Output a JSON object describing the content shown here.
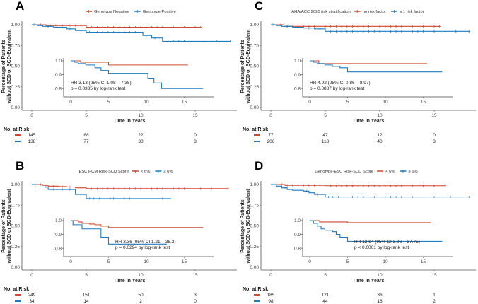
{
  "chart_data": [
    {
      "type": "line",
      "panel": "A",
      "legend_title": "",
      "xlabel": "Time in Years",
      "ylabel": [
        "Percentage of Patients",
        "without SCD or SCD-Equivalent"
      ],
      "xlim": [
        0,
        18.5
      ],
      "ylim": [
        0,
        1
      ],
      "xticks": [
        "0",
        "5",
        "10",
        "15"
      ],
      "yticks": [
        "0.00",
        "0.25",
        "0.50",
        "0.75",
        "1.00"
      ],
      "inset": {
        "xticks": [
          "0",
          "5",
          "10",
          "15"
        ],
        "yticks": [
          "0.8",
          "0.9",
          "1.0"
        ],
        "ylim": [
          0.77,
          1.0
        ]
      },
      "hr_text": "HR 3.13 (95% CI 1.08 – 7.38)",
      "p_text": "p = 0.0335 by log-rank test",
      "hr_position": "left",
      "risk_header": "No. at Risk",
      "series": [
        {
          "name": "Genotype Negative",
          "color": "#d0492f",
          "steps": [
            [
              0,
              1.0
            ],
            [
              1.3,
              0.99
            ],
            [
              5,
              0.97
            ]
          ],
          "end": 15.5,
          "censor": [
            0.3,
            0.8,
            1.2,
            1.7,
            2.2,
            2.8,
            3.5,
            4,
            4.5,
            5.5,
            6,
            6.5,
            7,
            7.5,
            8,
            8.5,
            9,
            9.5,
            10,
            10.5,
            11,
            11.5,
            12,
            13,
            14,
            15,
            15.5
          ],
          "at_risk": [
            "145",
            "88",
            "22",
            "0"
          ]
        },
        {
          "name": "Genotype Positive",
          "color": "#1f7bc0",
          "steps": [
            [
              0,
              1.0
            ],
            [
              0.5,
              0.99
            ],
            [
              1,
              0.98
            ],
            [
              2,
              0.97
            ],
            [
              3.2,
              0.95
            ],
            [
              4,
              0.93
            ],
            [
              5,
              0.91
            ],
            [
              10.2,
              0.87
            ],
            [
              11,
              0.84
            ],
            [
              12,
              0.8
            ]
          ],
          "end": 18.2,
          "censor": [
            0.2,
            1.5,
            2.5,
            3.5,
            4.5,
            5.3,
            6,
            6.5,
            7,
            7.5,
            8,
            8.5,
            9,
            9.5,
            10.5,
            11.3,
            12.5,
            13,
            13.5,
            14,
            14.5,
            16,
            17,
            18.2
          ],
          "at_risk": [
            "138",
            "77",
            "30",
            "3"
          ]
        }
      ]
    },
    {
      "type": "line",
      "panel": "C",
      "legend_title": "AHA/ACC 2020 risk stratification",
      "xlabel": "Time in Years",
      "ylabel": [
        "Percentage of Patients",
        "without SCD or SCD-Equivalent"
      ],
      "xlim": [
        0,
        18.5
      ],
      "ylim": [
        0,
        1
      ],
      "xticks": [
        "0",
        "5",
        "10",
        "15"
      ],
      "yticks": [
        "0.00",
        "0.25",
        "0.50",
        "0.75",
        "1.00"
      ],
      "inset": {
        "xticks": [
          "0",
          "5",
          "10",
          "15"
        ],
        "yticks": [
          "0.8",
          "0.9",
          "1.0"
        ],
        "ylim": [
          0.77,
          1.0
        ]
      },
      "hr_text": "HR 4.92 (95% CI 0.86 – 8.97)",
      "p_text": "p = 0.0887 by log-rank test",
      "hr_position": "left",
      "risk_header": "No. at Risk",
      "series": [
        {
          "name": "no risk factor",
          "color": "#d0492f",
          "steps": [
            [
              0,
              1.0
            ],
            [
              1.2,
              0.98
            ]
          ],
          "end": 15.5,
          "censor": [
            0.5,
            0.9,
            1.5,
            2,
            2.5,
            3,
            3.5,
            4,
            4.5,
            5,
            5.5,
            6,
            6.5,
            7,
            7.5,
            8,
            8.5,
            9,
            10,
            10.5,
            11,
            11.5,
            12,
            13,
            14,
            15,
            15.5
          ],
          "at_risk": [
            "77",
            "47",
            "12",
            "0"
          ]
        },
        {
          "name": "≥ 1 risk factor",
          "color": "#1f7bc0",
          "steps": [
            [
              0,
              1.0
            ],
            [
              0.5,
              0.99
            ],
            [
              1,
              0.98
            ],
            [
              2,
              0.97
            ],
            [
              3,
              0.96
            ],
            [
              4,
              0.95
            ],
            [
              5,
              0.92
            ]
          ],
          "end": 18.2,
          "censor": [
            0.2,
            1.5,
            2.5,
            3.5,
            4.5,
            5.5,
            6,
            6.5,
            7,
            7.5,
            8,
            8.5,
            9,
            9.5,
            10,
            10.5,
            11,
            11.5,
            12,
            13,
            13.5,
            14,
            15,
            16,
            17,
            18.2
          ],
          "at_risk": [
            "206",
            "118",
            "40",
            "3"
          ]
        }
      ]
    },
    {
      "type": "line",
      "panel": "B",
      "legend_title": "ESC HCM Risk-SCD Score",
      "xlabel": "Time in Years",
      "ylabel": [
        "Percentage of Patients",
        "without SCD or SCD-Equivalent"
      ],
      "xlim": [
        0,
        18.5
      ],
      "ylim": [
        0,
        1
      ],
      "xticks": [
        "0",
        "5",
        "10",
        "15"
      ],
      "yticks": [
        "0.00",
        "0.25",
        "0.50",
        "0.75",
        "1.00"
      ],
      "inset": {
        "xticks": [
          "0",
          "5",
          "10",
          "15"
        ],
        "yticks": [
          "0.8",
          "0.9",
          "1.0"
        ],
        "ylim": [
          0.77,
          1.0
        ]
      },
      "hr_text": "HR 3.36 (95% CI 1.21 – 36.2)",
      "p_text": "p = 0.0294 by log-rank test",
      "hr_position": "right",
      "risk_header": "No. at Risk",
      "series": [
        {
          "name": "< 6%",
          "color": "#d0492f",
          "steps": [
            [
              0,
              1.0
            ],
            [
              1,
              0.99
            ],
            [
              1.5,
              0.98
            ],
            [
              2.5,
              0.975
            ],
            [
              3.2,
              0.97
            ],
            [
              4,
              0.96
            ],
            [
              5,
              0.95
            ]
          ],
          "end": 18,
          "censor": [
            0.3,
            0.8,
            1.3,
            2,
            2.8,
            3.5,
            4.5,
            5.5,
            6,
            6.5,
            7,
            7.5,
            8,
            8.5,
            9,
            9.5,
            10,
            10.5,
            11,
            11.5,
            12,
            12.5,
            13,
            13.5,
            14,
            15.5,
            16.5,
            18
          ],
          "at_risk": [
            "249",
            "151",
            "50",
            "3"
          ]
        },
        {
          "name": "≥ 6%",
          "color": "#1f7bc0",
          "steps": [
            [
              0,
              1.0
            ],
            [
              0.3,
              0.97
            ],
            [
              1.5,
              0.94
            ],
            [
              4,
              0.88
            ],
            [
              5,
              0.83
            ]
          ],
          "end": 12.7,
          "censor": [
            0.1,
            1.3,
            2,
            2.8,
            3.5,
            4.5,
            5.3,
            5.7,
            6.2,
            7.2,
            7.5,
            8.5,
            9,
            12,
            12.7
          ],
          "at_risk": [
            "34",
            "14",
            "2",
            "0"
          ]
        }
      ]
    },
    {
      "type": "line",
      "panel": "D",
      "legend_title": "Genotype-ESC Risk-SCD Score",
      "xlabel": "Time in Years",
      "ylabel": [
        "Percentage of Patients",
        "without SCD or SCD-Equivalent"
      ],
      "xlim": [
        0,
        18.5
      ],
      "ylim": [
        0,
        1
      ],
      "xticks": [
        "0",
        "5",
        "10",
        "15"
      ],
      "yticks": [
        "0.00",
        "0.25",
        "0.50",
        "0.75",
        "1.00"
      ],
      "inset": {
        "xticks": [
          "0",
          "5",
          "10",
          "15"
        ],
        "yticks": [
          "0.8",
          "0.9",
          "1.0"
        ],
        "ylim": [
          0.77,
          1.0
        ]
      },
      "hr_text": "HR 12.94 (95% CI 3.96 – 37.75)",
      "p_text": "p < 0.0001 by log-rank test",
      "hr_position": "right",
      "risk_header": "No. at Risk",
      "series": [
        {
          "name": "< 6%",
          "color": "#d0492f",
          "steps": [
            [
              0,
              1.0
            ],
            [
              1.3,
              0.99
            ],
            [
              5,
              0.985
            ]
          ],
          "end": 16,
          "censor": [
            0.5,
            1,
            1.5,
            2,
            2.5,
            3,
            3.5,
            4,
            4.5,
            5.5,
            6,
            6.5,
            7,
            7.5,
            8,
            8.5,
            9,
            9.5,
            10,
            10.5,
            11,
            11.5,
            12,
            13,
            14,
            15,
            16
          ],
          "at_risk": [
            "185",
            "121",
            "36",
            "1"
          ]
        },
        {
          "name": "≥ 6%",
          "color": "#1f7bc0",
          "steps": [
            [
              0,
              1.0
            ],
            [
              0.5,
              0.98
            ],
            [
              1,
              0.96
            ],
            [
              1.5,
              0.94
            ],
            [
              2,
              0.93
            ],
            [
              3,
              0.92
            ],
            [
              3.5,
              0.9
            ],
            [
              4,
              0.88
            ],
            [
              5,
              0.85
            ]
          ],
          "end": 18.2,
          "censor": [
            0.1,
            1.3,
            2.5,
            3.3,
            4.3,
            4.7,
            5.3,
            5.7,
            6.2,
            7.5,
            8,
            8.5,
            9.5,
            10.5,
            11,
            11.5,
            12,
            13,
            15,
            16.5,
            18.2
          ],
          "at_risk": [
            "98",
            "44",
            "16",
            "2"
          ]
        }
      ]
    }
  ]
}
